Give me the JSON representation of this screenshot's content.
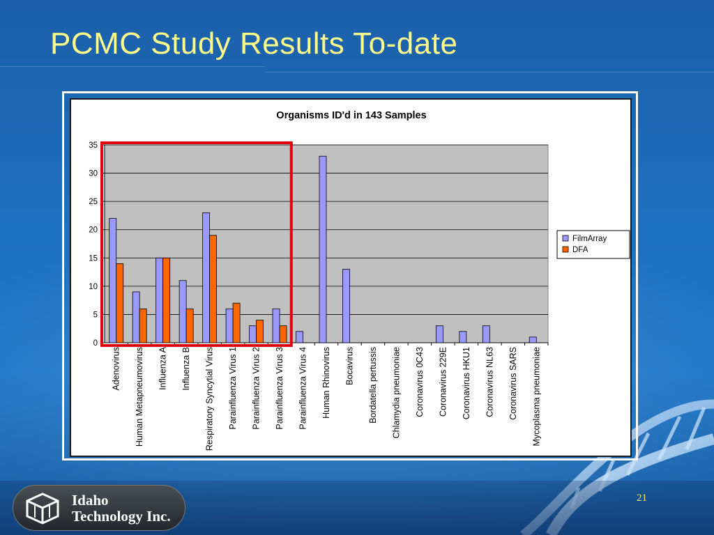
{
  "slide": {
    "title": "PCMC Study Results To-date",
    "page_number": "21",
    "logo": {
      "line1": "Idaho",
      "line2": "Technology Inc."
    }
  },
  "colors": {
    "title": "#fffe8a",
    "filmarray": "#9999ff",
    "dfa": "#ff6600",
    "plot_bg": "#c0c0c0",
    "highlight": "#e0000f"
  },
  "chart_data": {
    "type": "bar",
    "title": "Organisms ID'd in 143 Samples",
    "xlabel": "",
    "ylabel": "",
    "ylim": [
      0,
      35
    ],
    "yticks": [
      0,
      5,
      10,
      15,
      20,
      25,
      30,
      35
    ],
    "grid": true,
    "legend_position": "right",
    "categories": [
      "Adenovirus",
      "Human Metapneumovirus",
      "Influenza A",
      "Influenza B",
      "Respiratory Syncytial Virus",
      "Parainfluenza Virus 1",
      "Parainfluenza Virus 2",
      "Parainfluenza Virus 3",
      "Parainfluenza Virus 4",
      "Human Rhinovirus",
      "Bocavirus",
      "Bordatella pertussis",
      "Chlamydia pneumoniae",
      "Coronavirus 0C43",
      "Coronavirus 229E",
      "Coronavirus HKU1",
      "Coronavirus NL63",
      "Coronavirus SARS",
      "Mycoplasma pneumoniae"
    ],
    "series": [
      {
        "name": "FilmArray",
        "values": [
          22,
          9,
          15,
          11,
          23,
          6,
          3,
          6,
          2,
          33,
          13,
          0,
          0,
          0,
          3,
          2,
          3,
          0,
          1
        ]
      },
      {
        "name": "DFA",
        "values": [
          14,
          6,
          15,
          6,
          19,
          7,
          4,
          3,
          null,
          null,
          null,
          null,
          null,
          null,
          null,
          null,
          null,
          null,
          null
        ]
      }
    ],
    "highlight": {
      "from_category": "Adenovirus",
      "to_category": "Parainfluenza Virus 3"
    }
  }
}
